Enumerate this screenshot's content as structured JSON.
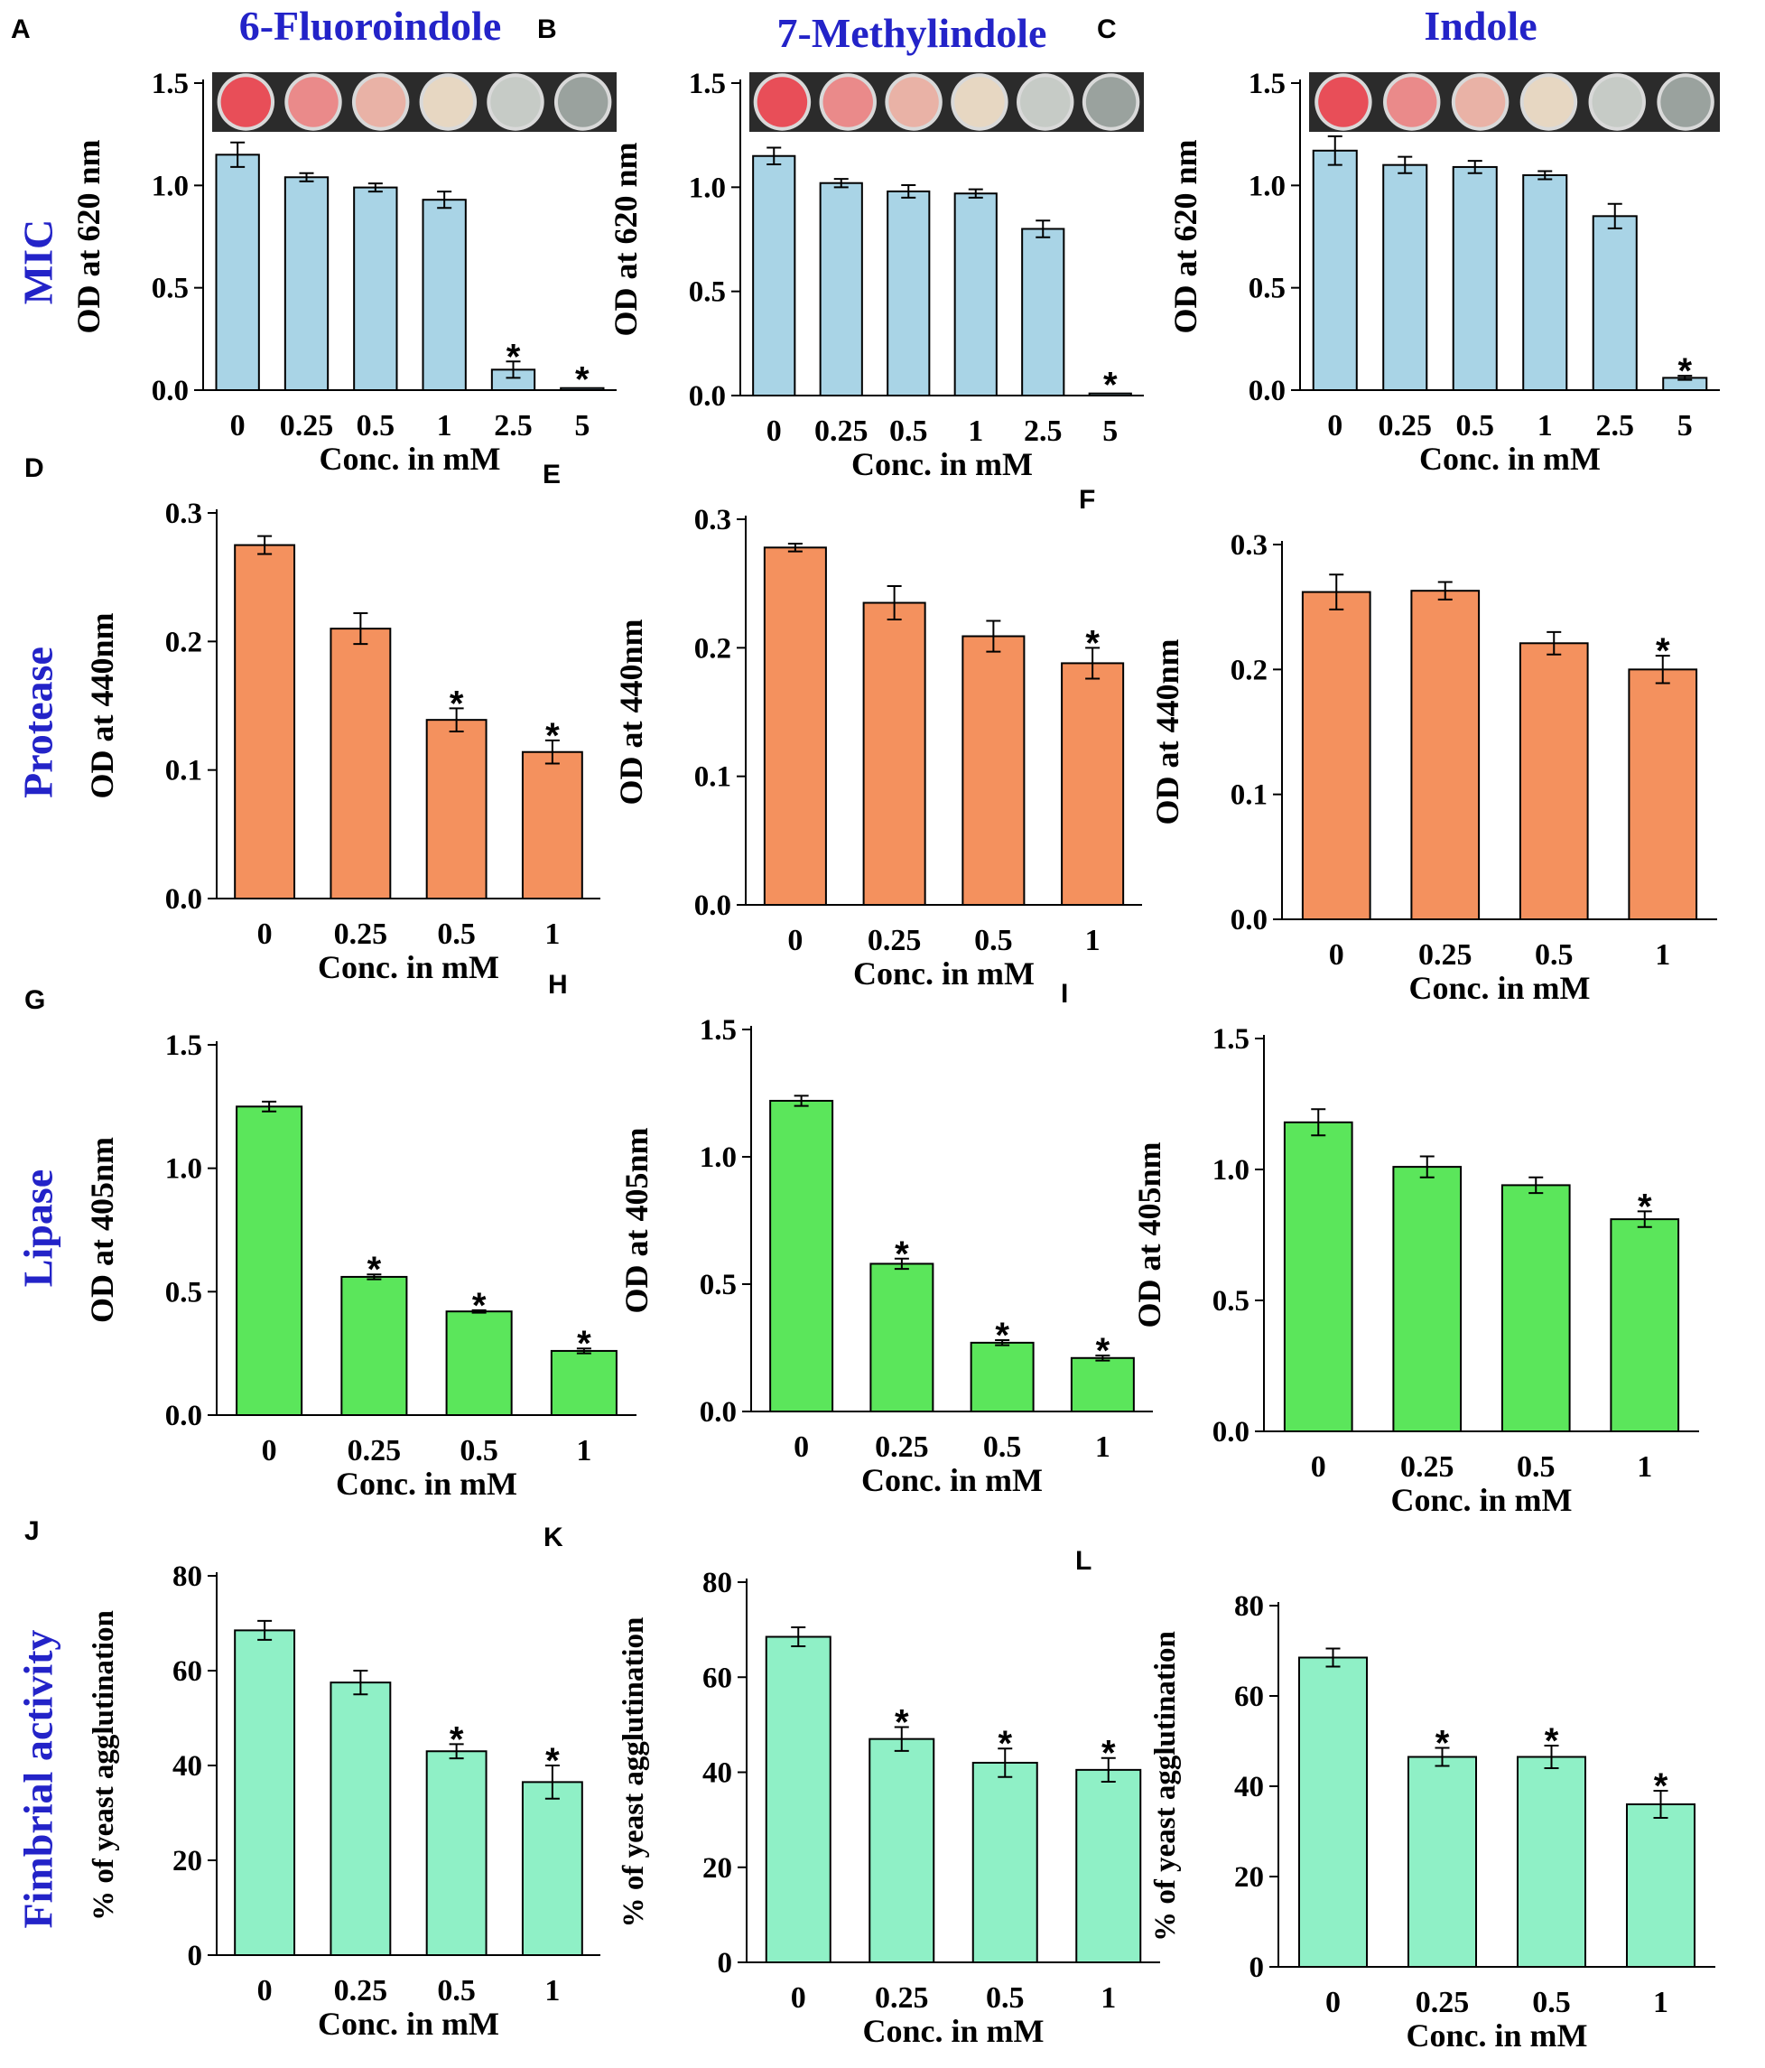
{
  "colors": {
    "label_blue": "#2323c8",
    "axis": "#000000",
    "mic_bar": "#a9d4e6",
    "protease_bar": "#f4915e",
    "lipase_bar": "#5be65b",
    "fimbrial_bar": "#8ff0c6",
    "well_colors": [
      "#e84e58",
      "#ea8a8a",
      "#e9b2a6",
      "#e7d7c2",
      "#c6cbc6",
      "#9aa29e"
    ]
  },
  "column_titles": [
    "6-Fluoroindole",
    "7-Methylindole",
    "Indole"
  ],
  "row_labels": [
    "MIC",
    "Protease",
    "Lipase",
    "Fimbrial activity"
  ],
  "star_symbol": "*",
  "chart_data": [
    {
      "panel": "A",
      "type": "bar",
      "row": 0,
      "col": 0,
      "xlabel": "Conc. in mM",
      "ylabel": "OD at 620 nm",
      "categories": [
        "0",
        "0.25",
        "0.5",
        "1",
        "2.5",
        "5"
      ],
      "values": [
        1.15,
        1.04,
        0.99,
        0.93,
        0.1,
        0.01
      ],
      "errors": [
        0.06,
        0.02,
        0.02,
        0.04,
        0.04,
        0.0
      ],
      "significant": [
        false,
        false,
        false,
        false,
        true,
        true
      ],
      "ylim": [
        0,
        1.5
      ],
      "yticks": [
        "0.0",
        "0.5",
        "1.0",
        "1.5"
      ],
      "wells_image": true
    },
    {
      "panel": "B",
      "type": "bar",
      "row": 0,
      "col": 1,
      "xlabel": "Conc. in mM",
      "ylabel": "OD at 620 nm",
      "categories": [
        "0",
        "0.25",
        "0.5",
        "1",
        "2.5",
        "5"
      ],
      "values": [
        1.15,
        1.02,
        0.98,
        0.97,
        0.8,
        0.01
      ],
      "errors": [
        0.04,
        0.02,
        0.03,
        0.02,
        0.04,
        0.0
      ],
      "significant": [
        false,
        false,
        false,
        false,
        false,
        true
      ],
      "ylim": [
        0,
        1.5
      ],
      "yticks": [
        "0.0",
        "0.5",
        "1.0",
        "1.5"
      ],
      "wells_image": true
    },
    {
      "panel": "C",
      "type": "bar",
      "row": 0,
      "col": 2,
      "xlabel": "Conc. in mM",
      "ylabel": "OD at 620 nm",
      "categories": [
        "0",
        "0.25",
        "0.5",
        "1",
        "2.5",
        "5"
      ],
      "values": [
        1.17,
        1.1,
        1.09,
        1.05,
        0.85,
        0.06
      ],
      "errors": [
        0.07,
        0.04,
        0.03,
        0.02,
        0.06,
        0.01
      ],
      "significant": [
        false,
        false,
        false,
        false,
        false,
        true
      ],
      "ylim": [
        0,
        1.5
      ],
      "yticks": [
        "0.0",
        "0.5",
        "1.0",
        "1.5"
      ],
      "wells_image": true
    },
    {
      "panel": "D",
      "type": "bar",
      "row": 1,
      "col": 0,
      "xlabel": "Conc. in mM",
      "ylabel": "OD at 440nm",
      "categories": [
        "0",
        "0.25",
        "0.5",
        "1"
      ],
      "values": [
        0.275,
        0.21,
        0.139,
        0.114
      ],
      "errors": [
        0.007,
        0.012,
        0.009,
        0.009
      ],
      "significant": [
        false,
        false,
        true,
        true
      ],
      "ylim": [
        0,
        0.3
      ],
      "yticks": [
        "0.0",
        "0.1",
        "0.2",
        "0.3"
      ]
    },
    {
      "panel": "E",
      "type": "bar",
      "row": 1,
      "col": 1,
      "xlabel": "Conc. in mM",
      "ylabel": "OD at 440nm",
      "categories": [
        "0",
        "0.25",
        "0.5",
        "1"
      ],
      "values": [
        0.278,
        0.235,
        0.209,
        0.188
      ],
      "errors": [
        0.003,
        0.013,
        0.012,
        0.012
      ],
      "significant": [
        false,
        false,
        false,
        true
      ],
      "ylim": [
        0,
        0.3
      ],
      "yticks": [
        "0.0",
        "0.1",
        "0.2",
        "0.3"
      ]
    },
    {
      "panel": "F",
      "type": "bar",
      "row": 1,
      "col": 2,
      "xlabel": "Conc. in mM",
      "ylabel": "OD at 440nm",
      "categories": [
        "0",
        "0.25",
        "0.5",
        "1"
      ],
      "values": [
        0.262,
        0.263,
        0.221,
        0.2
      ],
      "errors": [
        0.014,
        0.007,
        0.009,
        0.011
      ],
      "significant": [
        false,
        false,
        false,
        true
      ],
      "ylim": [
        0,
        0.3
      ],
      "yticks": [
        "0.0",
        "0.1",
        "0.2",
        "0.3"
      ]
    },
    {
      "panel": "G",
      "type": "bar",
      "row": 2,
      "col": 0,
      "xlabel": "Conc. in mM",
      "ylabel": "OD at 405nm",
      "categories": [
        "0",
        "0.25",
        "0.5",
        "1"
      ],
      "values": [
        1.25,
        0.56,
        0.42,
        0.26
      ],
      "errors": [
        0.02,
        0.01,
        0.005,
        0.01
      ],
      "significant": [
        false,
        true,
        true,
        true
      ],
      "ylim": [
        0,
        1.5
      ],
      "yticks": [
        "0.0",
        "0.5",
        "1.0",
        "1.5"
      ]
    },
    {
      "panel": "H",
      "type": "bar",
      "row": 2,
      "col": 1,
      "xlabel": "Conc. in mM",
      "ylabel": "OD at 405nm",
      "categories": [
        "0",
        "0.25",
        "0.5",
        "1"
      ],
      "values": [
        1.22,
        0.58,
        0.27,
        0.21
      ],
      "errors": [
        0.02,
        0.02,
        0.01,
        0.01
      ],
      "significant": [
        false,
        true,
        true,
        true
      ],
      "ylim": [
        0,
        1.5
      ],
      "yticks": [
        "0.0",
        "0.5",
        "1.0",
        "1.5"
      ]
    },
    {
      "panel": "I",
      "type": "bar",
      "row": 2,
      "col": 2,
      "xlabel": "Conc. in mM",
      "ylabel": "OD at 405nm",
      "categories": [
        "0",
        "0.25",
        "0.5",
        "1"
      ],
      "values": [
        1.18,
        1.01,
        0.94,
        0.81
      ],
      "errors": [
        0.05,
        0.04,
        0.03,
        0.03
      ],
      "significant": [
        false,
        false,
        false,
        true
      ],
      "ylim": [
        0,
        1.5
      ],
      "yticks": [
        "0.0",
        "0.5",
        "1.0",
        "1.5"
      ]
    },
    {
      "panel": "J",
      "type": "bar",
      "row": 3,
      "col": 0,
      "xlabel": "Conc. in mM",
      "ylabel": "% of yeast agglutination",
      "categories": [
        "0",
        "0.25",
        "0.5",
        "1"
      ],
      "values": [
        68.5,
        57.5,
        43,
        36.5
      ],
      "errors": [
        2,
        2.5,
        1.5,
        3.5
      ],
      "significant": [
        false,
        false,
        true,
        true
      ],
      "ylim": [
        0,
        80
      ],
      "yticks": [
        "0",
        "20",
        "40",
        "60",
        "80"
      ]
    },
    {
      "panel": "K",
      "type": "bar",
      "row": 3,
      "col": 1,
      "xlabel": "Conc. in mM",
      "ylabel": "% of yeast agglutination",
      "categories": [
        "0",
        "0.25",
        "0.5",
        "1"
      ],
      "values": [
        68.5,
        47,
        42,
        40.5
      ],
      "errors": [
        2,
        2.5,
        3,
        2.5
      ],
      "significant": [
        false,
        true,
        true,
        true
      ],
      "ylim": [
        0,
        80
      ],
      "yticks": [
        "0",
        "20",
        "40",
        "60",
        "80"
      ]
    },
    {
      "panel": "L",
      "type": "bar",
      "row": 3,
      "col": 2,
      "xlabel": "Conc. in mM",
      "ylabel": "% of yeast agglutination",
      "categories": [
        "0",
        "0.25",
        "0.5",
        "1"
      ],
      "values": [
        68.5,
        46.5,
        46.5,
        36
      ],
      "errors": [
        2,
        2,
        2.5,
        3
      ],
      "significant": [
        false,
        true,
        true,
        true
      ],
      "ylim": [
        0,
        80
      ],
      "yticks": [
        "0",
        "20",
        "40",
        "60",
        "80"
      ]
    }
  ]
}
